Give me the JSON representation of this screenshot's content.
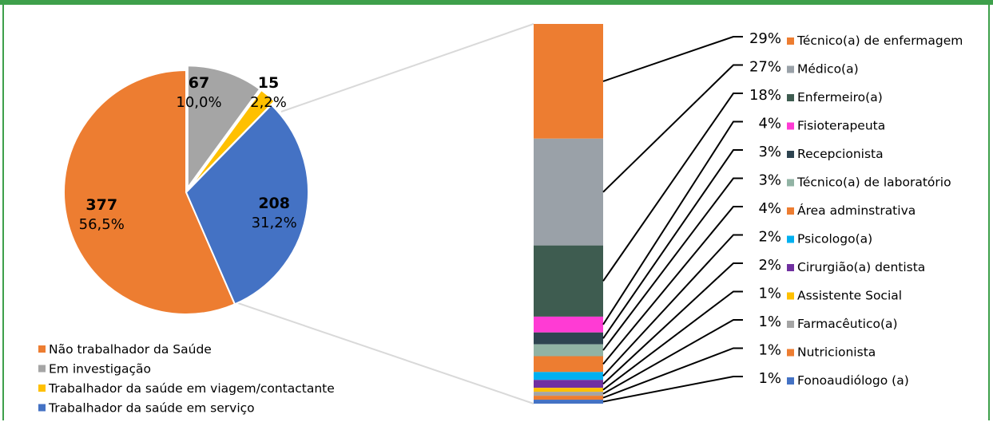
{
  "colors": {
    "border": "#3ea04b",
    "connector": "#d9d9d9"
  },
  "chart_data": [
    {
      "type": "pie",
      "title": "",
      "legend_position": "bottom-left",
      "slices": [
        {
          "name": "Não trabalhador da Saúde",
          "value": 377,
          "percent_label": "56,5%",
          "color": "#ed7d31"
        },
        {
          "name": "Em investigação",
          "value": 67,
          "percent_label": "10,0%",
          "color": "#a5a5a5"
        },
        {
          "name": "Trabalhador da saúde em viagem/contactante",
          "value": 15,
          "percent_label": "2,2%",
          "color": "#ffc000"
        },
        {
          "name": "Trabalhador da saúde em serviço",
          "value": 208,
          "percent_label": "31,2%",
          "color": "#4472c4"
        }
      ]
    },
    {
      "type": "bar",
      "subtype": "stacked-100",
      "legend_position": "right",
      "categories": [
        {
          "name": "Técnico(a) de enfermagem",
          "value": 29,
          "label": "29%",
          "color": "#ed7d31"
        },
        {
          "name": "Médico(a)",
          "value": 27,
          "label": "27%",
          "color": "#9aa1a8"
        },
        {
          "name": "Enfermeiro(a)",
          "value": 18,
          "label": "18%",
          "color": "#3e5c50"
        },
        {
          "name": "Fisioterapeuta",
          "value": 4,
          "label": "4%",
          "color": "#ff3bd4"
        },
        {
          "name": "Recepcionista",
          "value": 3,
          "label": "3%",
          "color": "#2e4450"
        },
        {
          "name": "Técnico(a) de laboratório",
          "value": 3,
          "label": "3%",
          "color": "#91b3a4"
        },
        {
          "name": "Área adminstrativa",
          "value": 4,
          "label": "4%",
          "color": "#ed7d31"
        },
        {
          "name": "Psicologo(a)",
          "value": 2,
          "label": "2%",
          "color": "#00b0f0"
        },
        {
          "name": "Cirurgião(a) dentista",
          "value": 2,
          "label": "2%",
          "color": "#7030a0"
        },
        {
          "name": "Assistente Social",
          "value": 1,
          "label": "1%",
          "color": "#ffc000"
        },
        {
          "name": "Farmacêutico(a)",
          "value": 1,
          "label": "1%",
          "color": "#a5a5a5"
        },
        {
          "name": "Nutricionista",
          "value": 1,
          "label": "1%",
          "color": "#ed7d31"
        },
        {
          "name": "Fonoaudiólogo (a)",
          "value": 1,
          "label": "1%",
          "color": "#4472c4"
        }
      ]
    }
  ]
}
